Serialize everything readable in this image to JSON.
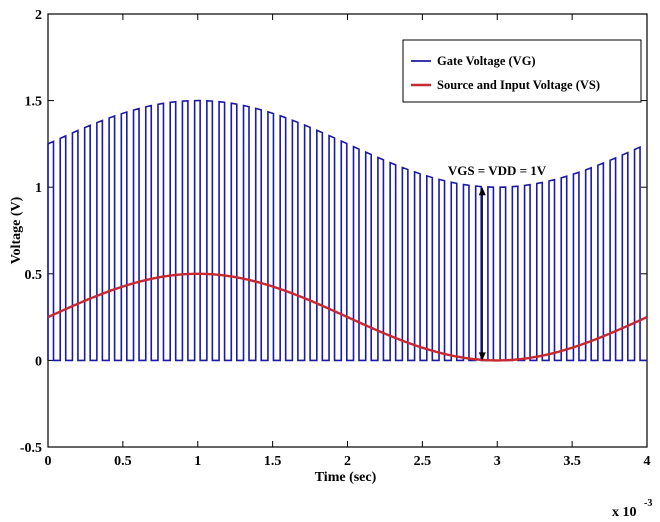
{
  "chart_data": {
    "type": "line",
    "title": "",
    "xlabel": "Time (sec)",
    "ylabel": "Voltage (V)",
    "x_exponent_label": "x 10",
    "x_exponent_power": "-3",
    "xlim": [
      0,
      4
    ],
    "ylim": [
      -0.5,
      2
    ],
    "x_ticks": [
      "0",
      "0.5",
      "1",
      "1.5",
      "2",
      "2.5",
      "3",
      "3.5",
      "4"
    ],
    "y_ticks": [
      "-0.5",
      "0",
      "0.5",
      "1",
      "1.5",
      "2"
    ],
    "grid": false,
    "legend_position": "top-right",
    "series": [
      {
        "name": "Gate Voltage (VG)",
        "color": "#1a1aa6",
        "style": "square-pulse train, low level 0 V, high level = VS + 1 V",
        "pulse_period": 0.0816,
        "pulse_count": 49,
        "high_level_offset": 1.0
      },
      {
        "name": "Source and Input Voltage (VS)",
        "color": "#c8282e",
        "style": "sinusoid",
        "offset": 0.25,
        "amplitude": 0.25,
        "period": 4,
        "x": [
          0,
          0.5,
          1,
          1.5,
          2,
          2.5,
          3,
          3.5,
          4
        ],
        "values": [
          0.25,
          0.43,
          0.5,
          0.43,
          0.25,
          0.07,
          0.0,
          0.07,
          0.25
        ]
      }
    ],
    "annotations": [
      {
        "text": "VGS = VDD = 1V",
        "arrow_x": 2.9,
        "arrow_from": 0.0,
        "arrow_to": 1.0
      }
    ]
  }
}
